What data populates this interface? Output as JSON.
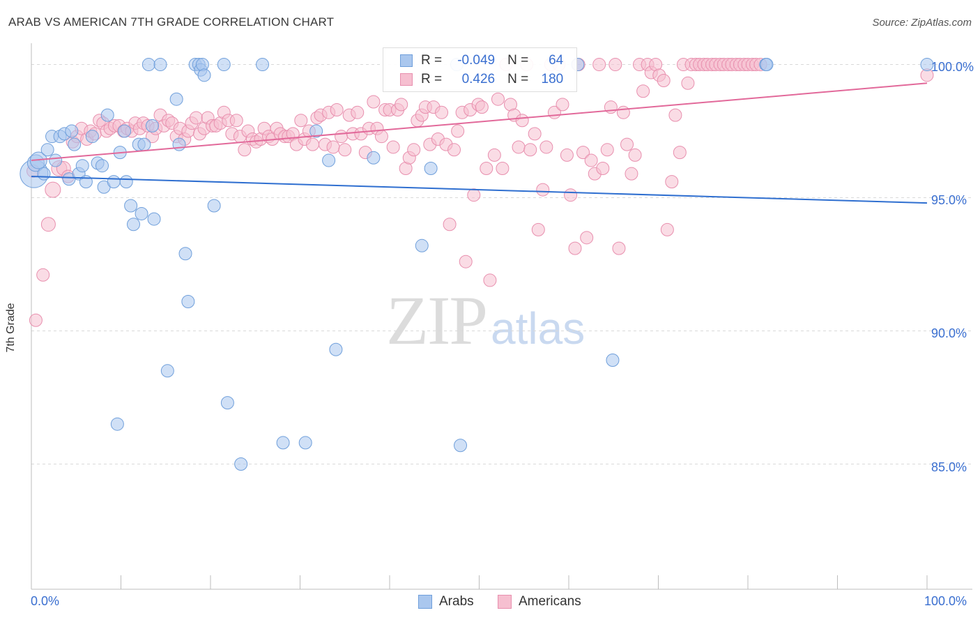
{
  "header": {
    "title": "ARAB VS AMERICAN 7TH GRADE CORRELATION CHART",
    "source": "Source: ZipAtlas.com"
  },
  "watermark": {
    "zip": "ZIP",
    "atlas": "atlas"
  },
  "legend_top": {
    "rows": [
      {
        "r_label": "R =",
        "r_value": "-0.049",
        "n_label": "N =",
        "n_value": "64"
      },
      {
        "r_label": "R =",
        "r_value": "0.426",
        "n_label": "N =",
        "n_value": "180"
      }
    ]
  },
  "legend_bottom": {
    "arabs": "Arabs",
    "americans": "Americans"
  },
  "colors": {
    "arabs_fill": "#aac7ee",
    "arabs_stroke": "#6f9fdb",
    "arabs_line": "#2f6fd0",
    "americans_fill": "#f6bfd0",
    "americans_stroke": "#e88fae",
    "americans_line": "#e2699a",
    "tick_text": "#3a6fd0",
    "grid": "#d9d9d9"
  },
  "chart_data": {
    "type": "scatter",
    "title": "ARAB VS AMERICAN 7TH GRADE CORRELATION CHART",
    "xlabel": "",
    "ylabel": "7th Grade",
    "xlim": [
      0,
      100
    ],
    "ylim": [
      80.3,
      100.8
    ],
    "x_tick_labels": [
      "0.0%",
      "100.0%"
    ],
    "y_ticks": [
      85,
      90,
      95,
      100
    ],
    "y_tick_labels": [
      "85.0%",
      "90.0%",
      "95.0%",
      "100.0%"
    ],
    "grid": true,
    "legend_position": "bottom",
    "series": [
      {
        "name": "Arabs",
        "r": -0.049,
        "n": 64,
        "trend": {
          "x": [
            0,
            100
          ],
          "y": [
            95.8,
            94.8
          ]
        },
        "points": [
          [
            0.3,
            95.9
          ],
          [
            0.5,
            96.3
          ],
          [
            0.8,
            96.4
          ],
          [
            1.4,
            95.9
          ],
          [
            1.8,
            96.8
          ],
          [
            2.3,
            97.3
          ],
          [
            2.7,
            96.4
          ],
          [
            3.2,
            97.3
          ],
          [
            3.7,
            97.4
          ],
          [
            4.2,
            95.7
          ],
          [
            4.5,
            97.5
          ],
          [
            4.8,
            97.0
          ],
          [
            5.3,
            95.9
          ],
          [
            5.7,
            96.2
          ],
          [
            6.1,
            95.6
          ],
          [
            6.8,
            97.3
          ],
          [
            7.4,
            96.3
          ],
          [
            7.9,
            96.2
          ],
          [
            8.1,
            95.4
          ],
          [
            8.5,
            98.1
          ],
          [
            9.2,
            95.6
          ],
          [
            9.6,
            86.5
          ],
          [
            9.9,
            96.7
          ],
          [
            10.4,
            97.5
          ],
          [
            10.6,
            95.6
          ],
          [
            11.1,
            94.7
          ],
          [
            11.4,
            94.0
          ],
          [
            12.0,
            97.0
          ],
          [
            12.3,
            94.4
          ],
          [
            12.6,
            97.0
          ],
          [
            13.1,
            100.0
          ],
          [
            13.5,
            97.7
          ],
          [
            13.7,
            94.2
          ],
          [
            14.4,
            100.0
          ],
          [
            15.2,
            88.5
          ],
          [
            16.2,
            98.7
          ],
          [
            16.5,
            97.0
          ],
          [
            17.2,
            92.9
          ],
          [
            17.5,
            91.1
          ],
          [
            18.3,
            100.0
          ],
          [
            18.7,
            100.0
          ],
          [
            18.9,
            99.8
          ],
          [
            19.1,
            100.0
          ],
          [
            19.3,
            99.6
          ],
          [
            20.4,
            94.7
          ],
          [
            21.5,
            100.0
          ],
          [
            21.9,
            87.3
          ],
          [
            23.4,
            85.0
          ],
          [
            25.8,
            100.0
          ],
          [
            28.1,
            85.8
          ],
          [
            30.6,
            85.8
          ],
          [
            31.8,
            97.5
          ],
          [
            33.2,
            96.4
          ],
          [
            34.0,
            89.3
          ],
          [
            38.2,
            96.5
          ],
          [
            43.6,
            93.2
          ],
          [
            44.6,
            96.1
          ],
          [
            47.5,
            100.0
          ],
          [
            47.9,
            85.7
          ],
          [
            61.0,
            100.0
          ],
          [
            64.9,
            88.9
          ],
          [
            82.0,
            100.0
          ],
          [
            82.1,
            100.0
          ],
          [
            100.0,
            100.0
          ]
        ],
        "sizes": [
          20,
          12,
          12,
          9,
          9,
          9,
          9,
          9,
          9,
          9,
          9,
          9,
          9,
          9,
          9,
          9,
          9,
          9,
          9,
          9,
          9,
          9,
          9,
          9,
          9,
          9,
          9,
          9,
          9,
          9,
          9,
          9,
          9,
          9,
          9,
          9,
          9,
          9,
          9,
          9,
          9,
          9,
          9,
          9,
          9,
          9,
          9,
          9,
          9,
          9,
          9,
          9,
          9,
          9,
          9,
          9,
          9,
          9,
          9,
          9,
          9,
          9,
          9,
          9
        ]
      },
      {
        "name": "Americans",
        "r": 0.426,
        "n": 180,
        "trend": {
          "x": [
            0,
            100
          ],
          "y": [
            96.4,
            99.3
          ]
        },
        "points": [
          [
            0.5,
            90.4
          ],
          [
            1.3,
            92.1
          ],
          [
            1.9,
            94.0
          ],
          [
            2.4,
            95.3
          ],
          [
            3.1,
            96.1
          ],
          [
            3.6,
            96.1
          ],
          [
            4.1,
            95.8
          ],
          [
            4.6,
            97.1
          ],
          [
            5.1,
            97.3
          ],
          [
            5.6,
            97.6
          ],
          [
            6.2,
            97.2
          ],
          [
            6.6,
            97.5
          ],
          [
            7.1,
            97.4
          ],
          [
            7.6,
            97.9
          ],
          [
            8.0,
            97.8
          ],
          [
            8.4,
            97.5
          ],
          [
            8.8,
            97.6
          ],
          [
            9.3,
            97.7
          ],
          [
            9.8,
            97.7
          ],
          [
            10.3,
            97.5
          ],
          [
            10.7,
            97.6
          ],
          [
            11.2,
            97.5
          ],
          [
            11.6,
            97.8
          ],
          [
            12.1,
            97.6
          ],
          [
            12.5,
            97.8
          ],
          [
            13.0,
            97.7
          ],
          [
            13.5,
            97.3
          ],
          [
            13.9,
            97.6
          ],
          [
            14.4,
            98.1
          ],
          [
            14.8,
            97.7
          ],
          [
            15.3,
            97.9
          ],
          [
            15.7,
            97.8
          ],
          [
            16.2,
            97.3
          ],
          [
            16.6,
            97.6
          ],
          [
            17.1,
            97.2
          ],
          [
            17.5,
            97.5
          ],
          [
            17.9,
            97.8
          ],
          [
            18.4,
            98.0
          ],
          [
            18.8,
            97.4
          ],
          [
            19.3,
            97.6
          ],
          [
            19.7,
            98.0
          ],
          [
            20.2,
            97.7
          ],
          [
            20.6,
            97.7
          ],
          [
            21.1,
            97.8
          ],
          [
            21.5,
            98.2
          ],
          [
            22.0,
            97.9
          ],
          [
            22.4,
            97.4
          ],
          [
            22.9,
            97.9
          ],
          [
            23.3,
            97.3
          ],
          [
            23.8,
            96.8
          ],
          [
            24.2,
            97.5
          ],
          [
            24.7,
            97.2
          ],
          [
            25.1,
            97.1
          ],
          [
            25.6,
            97.2
          ],
          [
            26.0,
            97.6
          ],
          [
            26.5,
            97.3
          ],
          [
            26.9,
            97.2
          ],
          [
            27.4,
            97.6
          ],
          [
            27.8,
            97.4
          ],
          [
            28.3,
            97.3
          ],
          [
            28.7,
            97.3
          ],
          [
            29.2,
            97.4
          ],
          [
            29.6,
            97.0
          ],
          [
            30.1,
            97.9
          ],
          [
            30.5,
            97.2
          ],
          [
            31.0,
            97.5
          ],
          [
            31.4,
            97.0
          ],
          [
            31.9,
            98.0
          ],
          [
            32.3,
            98.1
          ],
          [
            32.8,
            97.0
          ],
          [
            33.2,
            98.2
          ],
          [
            33.7,
            96.9
          ],
          [
            34.1,
            98.3
          ],
          [
            34.6,
            97.3
          ],
          [
            35.0,
            96.8
          ],
          [
            35.5,
            98.1
          ],
          [
            35.9,
            97.4
          ],
          [
            36.4,
            98.2
          ],
          [
            36.8,
            97.4
          ],
          [
            37.3,
            96.7
          ],
          [
            37.7,
            97.6
          ],
          [
            38.2,
            98.6
          ],
          [
            38.6,
            97.6
          ],
          [
            39.1,
            97.3
          ],
          [
            39.5,
            98.3
          ],
          [
            40.0,
            98.3
          ],
          [
            40.4,
            96.9
          ],
          [
            40.9,
            98.3
          ],
          [
            41.3,
            98.5
          ],
          [
            41.8,
            96.1
          ],
          [
            42.2,
            96.5
          ],
          [
            42.7,
            96.8
          ],
          [
            43.1,
            97.9
          ],
          [
            43.6,
            98.1
          ],
          [
            44.0,
            98.4
          ],
          [
            44.5,
            97.0
          ],
          [
            44.9,
            98.4
          ],
          [
            45.4,
            97.2
          ],
          [
            45.8,
            98.2
          ],
          [
            46.3,
            97.0
          ],
          [
            46.7,
            94.0
          ],
          [
            47.2,
            96.8
          ],
          [
            47.6,
            97.5
          ],
          [
            48.1,
            98.2
          ],
          [
            48.5,
            92.6
          ],
          [
            49.0,
            98.3
          ],
          [
            49.4,
            95.1
          ],
          [
            49.9,
            98.5
          ],
          [
            50.3,
            98.4
          ],
          [
            50.8,
            96.1
          ],
          [
            51.2,
            91.9
          ],
          [
            51.7,
            96.6
          ],
          [
            52.1,
            98.7
          ],
          [
            52.6,
            96.1
          ],
          [
            53.0,
            100.0
          ],
          [
            53.5,
            98.5
          ],
          [
            53.9,
            98.1
          ],
          [
            54.4,
            96.9
          ],
          [
            54.8,
            97.9
          ],
          [
            55.3,
            100.0
          ],
          [
            55.7,
            96.8
          ],
          [
            56.2,
            97.4
          ],
          [
            56.6,
            93.8
          ],
          [
            57.1,
            95.3
          ],
          [
            57.5,
            96.9
          ],
          [
            58.0,
            100.0
          ],
          [
            58.4,
            98.2
          ],
          [
            58.9,
            100.0
          ],
          [
            59.3,
            98.5
          ],
          [
            59.8,
            96.6
          ],
          [
            60.2,
            95.1
          ],
          [
            60.7,
            93.1
          ],
          [
            61.1,
            100.0
          ],
          [
            61.6,
            96.7
          ],
          [
            62.0,
            93.5
          ],
          [
            62.5,
            96.4
          ],
          [
            62.9,
            95.9
          ],
          [
            63.4,
            100.0
          ],
          [
            63.8,
            96.1
          ],
          [
            64.3,
            96.8
          ],
          [
            64.7,
            98.4
          ],
          [
            65.2,
            100.0
          ],
          [
            65.6,
            93.1
          ],
          [
            66.1,
            98.2
          ],
          [
            66.5,
            97.0
          ],
          [
            67.0,
            95.9
          ],
          [
            67.4,
            96.6
          ],
          [
            67.9,
            100.0
          ],
          [
            68.3,
            99.0
          ],
          [
            68.8,
            100.0
          ],
          [
            69.2,
            99.7
          ],
          [
            69.7,
            100.0
          ],
          [
            70.1,
            99.6
          ],
          [
            70.6,
            99.4
          ],
          [
            71.0,
            93.8
          ],
          [
            71.5,
            95.6
          ],
          [
            71.9,
            98.1
          ],
          [
            72.4,
            96.7
          ],
          [
            72.8,
            100.0
          ],
          [
            73.3,
            99.3
          ],
          [
            73.7,
            100.0
          ],
          [
            74.2,
            100.0
          ],
          [
            74.6,
            100.0
          ],
          [
            75.1,
            100.0
          ],
          [
            75.5,
            100.0
          ],
          [
            76.0,
            100.0
          ],
          [
            76.4,
            100.0
          ],
          [
            76.9,
            100.0
          ],
          [
            77.3,
            100.0
          ],
          [
            77.8,
            100.0
          ],
          [
            78.2,
            100.0
          ],
          [
            78.7,
            100.0
          ],
          [
            79.1,
            100.0
          ],
          [
            79.6,
            100.0
          ],
          [
            80.0,
            100.0
          ],
          [
            80.5,
            100.0
          ],
          [
            80.9,
            100.0
          ],
          [
            81.4,
            100.0
          ],
          [
            100.0,
            99.6
          ],
          [
            0.2,
            96.0
          ]
        ],
        "sizes": [
          9,
          9,
          10,
          11,
          11,
          10,
          9,
          9,
          9,
          9,
          9,
          9,
          9,
          9,
          9,
          9,
          9,
          9,
          9,
          9,
          9,
          9,
          9,
          9,
          9,
          9,
          9,
          9,
          9,
          9,
          9,
          9,
          9,
          9,
          9,
          9,
          9,
          9,
          9,
          9,
          9,
          9,
          9,
          9,
          9,
          9,
          9,
          9,
          9,
          9,
          9,
          9,
          9,
          9,
          9,
          9,
          9,
          9,
          9,
          9,
          9,
          9,
          9,
          9,
          9,
          9,
          9,
          9,
          9,
          9,
          9,
          9,
          9,
          9,
          9,
          9,
          9,
          9,
          9,
          9,
          9,
          9,
          9,
          9,
          9,
          9,
          9,
          9,
          9,
          9,
          9,
          9,
          9,
          9,
          9,
          9,
          9,
          9,
          9,
          9,
          9,
          9,
          9,
          9,
          9,
          9,
          9,
          9,
          9,
          9,
          9,
          9,
          9,
          9,
          9,
          9,
          9,
          9,
          9,
          9,
          9,
          9,
          9,
          9,
          9,
          9,
          9,
          9,
          9,
          9,
          9,
          9,
          9,
          9,
          9,
          9,
          9,
          9,
          9,
          9,
          9,
          9,
          9,
          9,
          9,
          9,
          9,
          9,
          9,
          9,
          9,
          9,
          9,
          9,
          9,
          9,
          9,
          9,
          9,
          9,
          9,
          9,
          9,
          9,
          9,
          9,
          9,
          9,
          9,
          9,
          9,
          9,
          9,
          9,
          9,
          9,
          9,
          9,
          9,
          9
        ]
      }
    ]
  }
}
